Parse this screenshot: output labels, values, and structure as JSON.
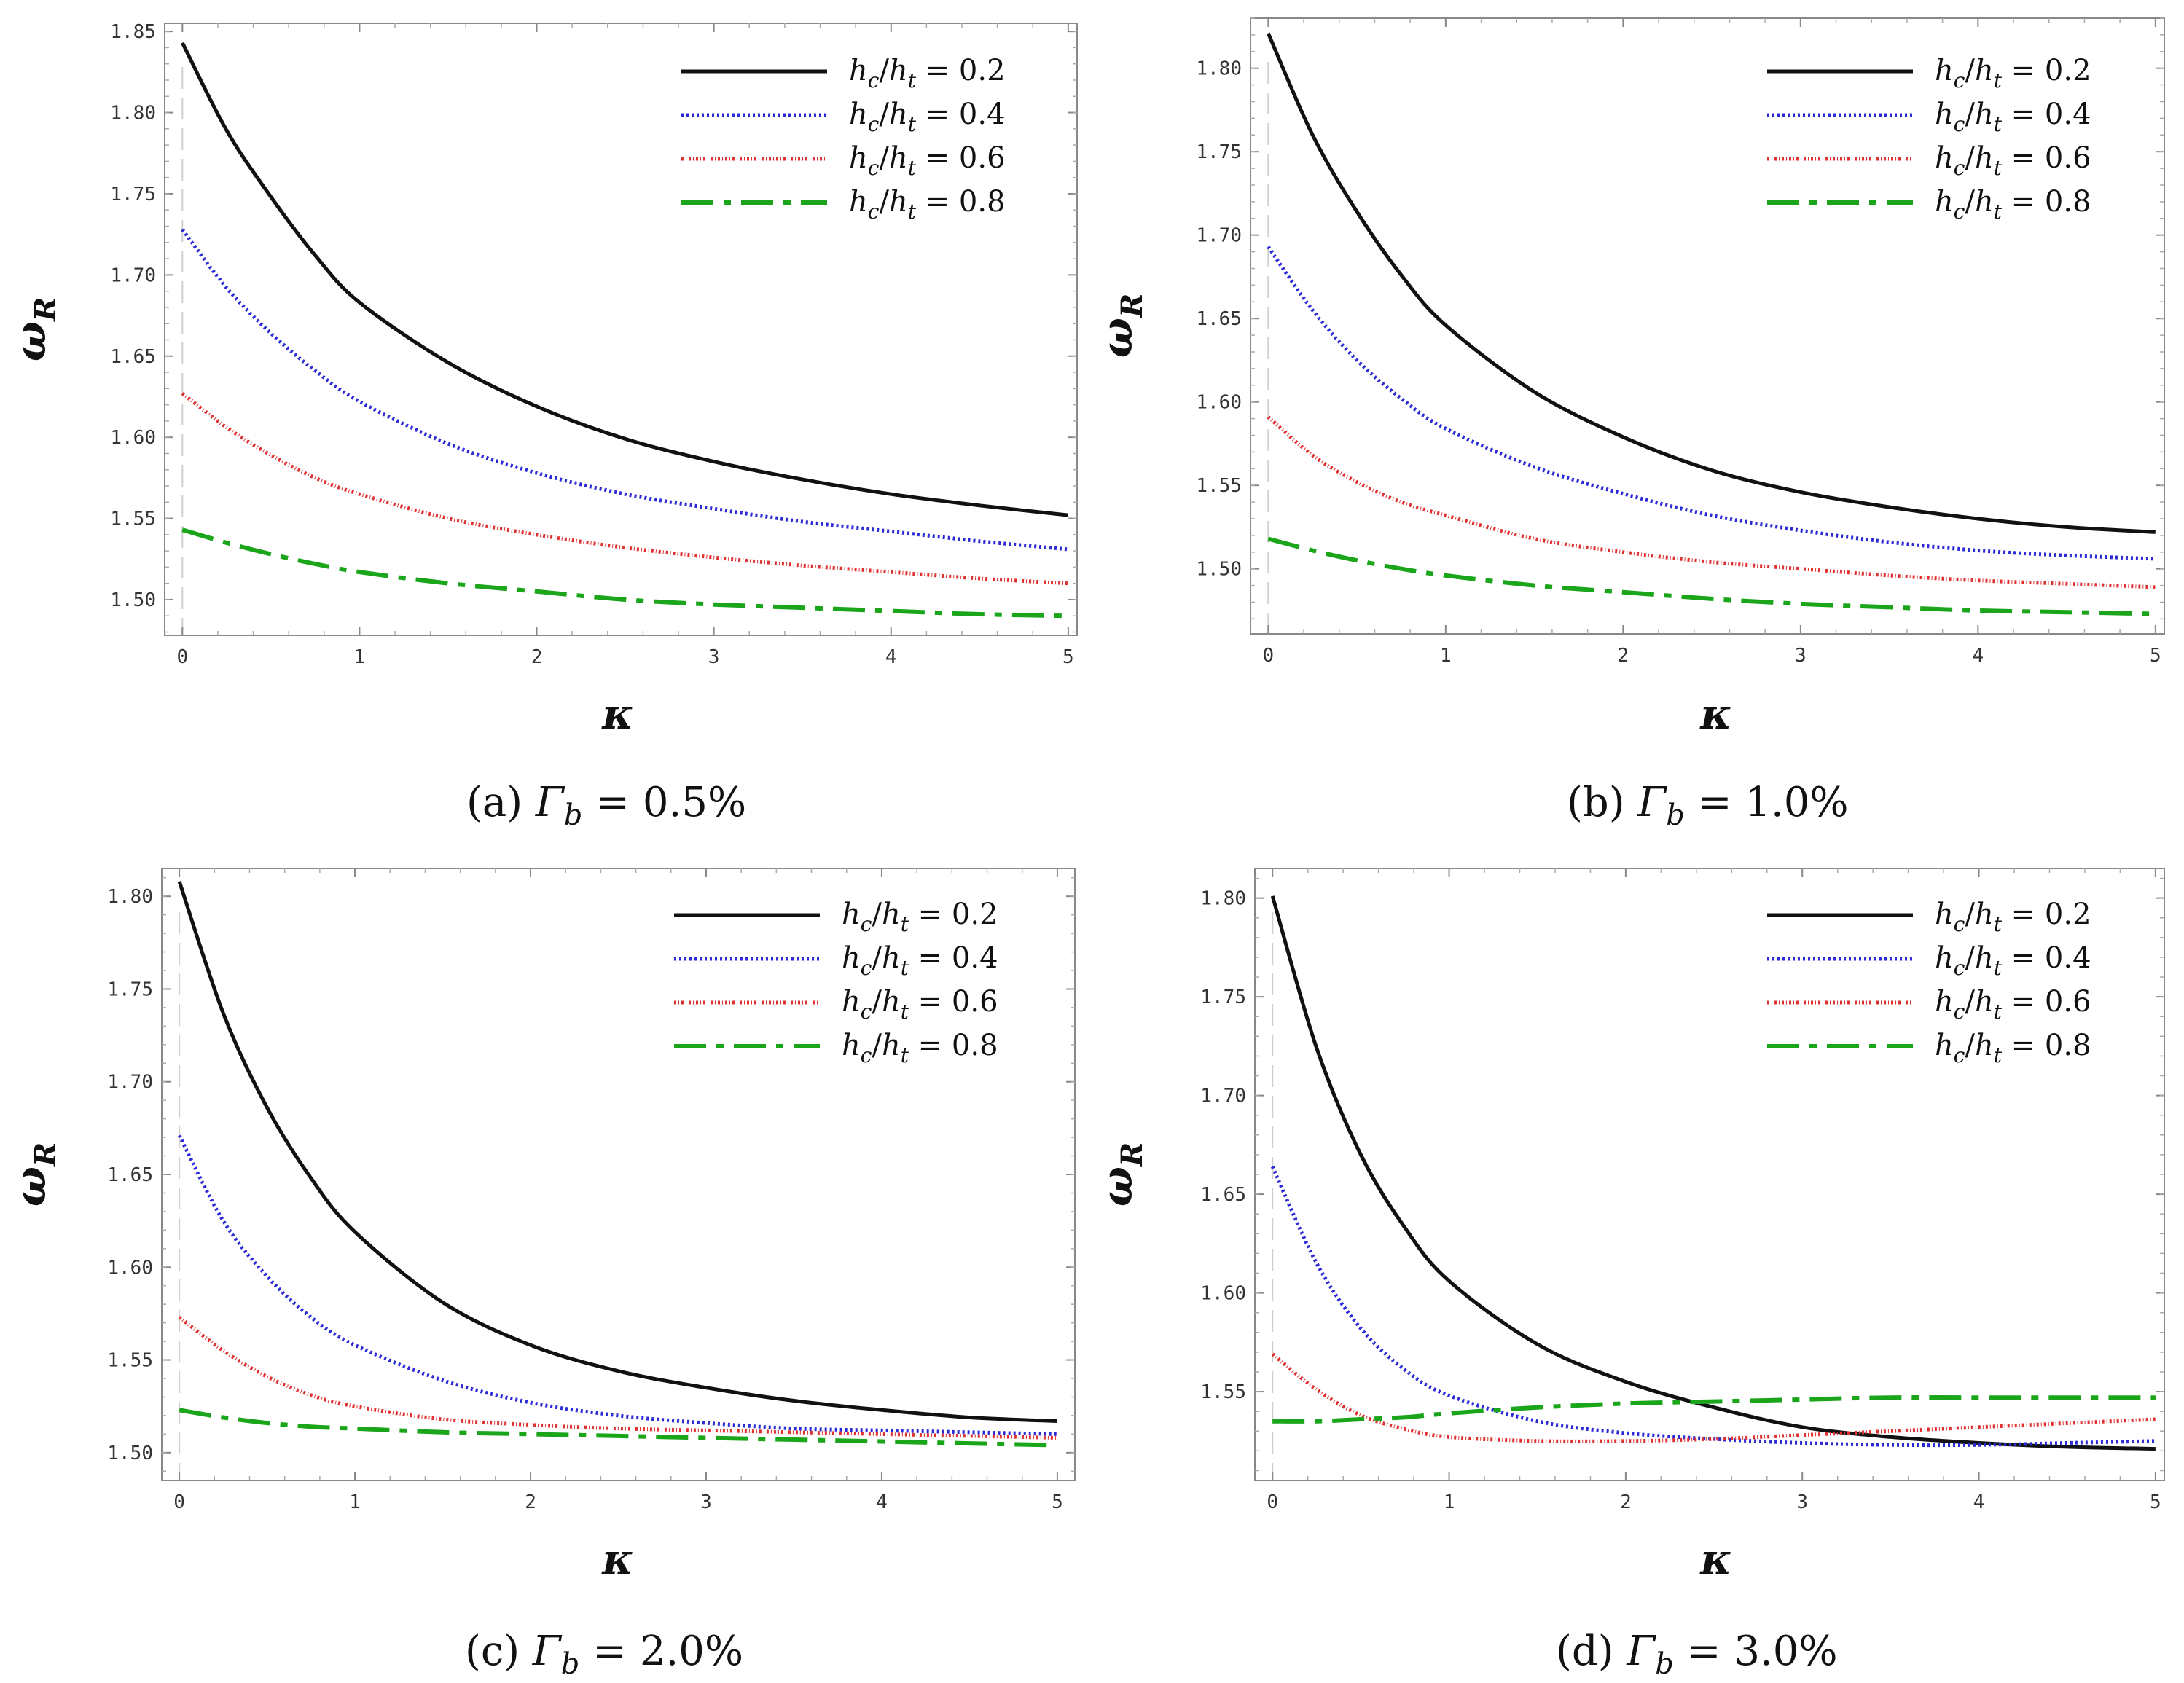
{
  "chart_data": [
    {
      "type": "line",
      "caption_prefix": "(a)",
      "caption_symbol": "Γ",
      "caption_subscript": "b",
      "caption_value": " = 0.5%",
      "xlabel": "κ",
      "ylabel": "ω",
      "ylabel_subscript": "R",
      "xlim": [
        -0.1,
        5.05
      ],
      "ylim": [
        1.478,
        1.855
      ],
      "xticks": [
        0,
        1,
        2,
        3,
        4,
        5
      ],
      "yticks": [
        "1.50",
        "1.55",
        "1.60",
        "1.65",
        "1.70",
        "1.75",
        "1.80",
        "1.85"
      ],
      "x": [
        0,
        0.25,
        0.5,
        0.75,
        1,
        1.5,
        2,
        2.5,
        3,
        3.5,
        4,
        4.5,
        5
      ],
      "series": [
        {
          "name": "h_c/h_t = 0.2",
          "ratio": "0.2",
          "color": "#111111",
          "style": "solid",
          "values": [
            1.843,
            1.789,
            1.748,
            1.712,
            1.683,
            1.646,
            1.619,
            1.599,
            1.585,
            1.574,
            1.565,
            1.558,
            1.552
          ]
        },
        {
          "name": "h_c/h_t = 0.4",
          "ratio": "0.4",
          "color": "#2a2ad6",
          "style": "dotted",
          "values": [
            1.728,
            1.692,
            1.664,
            1.641,
            1.622,
            1.596,
            1.578,
            1.565,
            1.556,
            1.548,
            1.542,
            1.536,
            1.531
          ]
        },
        {
          "name": "h_c/h_t = 0.6",
          "ratio": "0.6",
          "color": "#e03030",
          "style": "dashdot-dense",
          "values": [
            1.627,
            1.606,
            1.589,
            1.575,
            1.565,
            1.55,
            1.54,
            1.532,
            1.526,
            1.521,
            1.517,
            1.513,
            1.51
          ]
        },
        {
          "name": "h_c/h_t = 0.8",
          "ratio": "0.8",
          "color": "#1aa51a",
          "style": "dashdot",
          "values": [
            1.543,
            1.535,
            1.528,
            1.522,
            1.517,
            1.51,
            1.505,
            1.5,
            1.497,
            1.495,
            1.493,
            1.491,
            1.49
          ]
        }
      ]
    },
    {
      "type": "line",
      "caption_prefix": "(b)",
      "caption_symbol": "Γ",
      "caption_subscript": "b",
      "caption_value": " = 1.0%",
      "xlabel": "κ",
      "ylabel": "ω",
      "ylabel_subscript": "R",
      "xlim": [
        -0.1,
        5.05
      ],
      "ylim": [
        1.461,
        1.83
      ],
      "xticks": [
        0,
        1,
        2,
        3,
        4,
        5
      ],
      "yticks": [
        "1.50",
        "1.55",
        "1.60",
        "1.65",
        "1.70",
        "1.75",
        "1.80"
      ],
      "x": [
        0,
        0.25,
        0.5,
        0.75,
        1,
        1.5,
        2,
        2.5,
        3,
        3.5,
        4,
        4.5,
        5
      ],
      "series": [
        {
          "name": "h_c/h_t = 0.2",
          "ratio": "0.2",
          "color": "#111111",
          "style": "solid",
          "values": [
            1.821,
            1.76,
            1.714,
            1.676,
            1.646,
            1.606,
            1.579,
            1.559,
            1.546,
            1.537,
            1.53,
            1.525,
            1.522
          ]
        },
        {
          "name": "h_c/h_t = 0.4",
          "ratio": "0.4",
          "color": "#2a2ad6",
          "style": "dotted",
          "values": [
            1.693,
            1.655,
            1.625,
            1.602,
            1.584,
            1.561,
            1.545,
            1.532,
            1.523,
            1.516,
            1.511,
            1.508,
            1.506
          ]
        },
        {
          "name": "h_c/h_t = 0.6",
          "ratio": "0.6",
          "color": "#e03030",
          "style": "dashdot-dense",
          "values": [
            1.591,
            1.568,
            1.552,
            1.54,
            1.532,
            1.518,
            1.51,
            1.504,
            1.5,
            1.496,
            1.493,
            1.491,
            1.489
          ]
        },
        {
          "name": "h_c/h_t = 0.8",
          "ratio": "0.8",
          "color": "#1aa51a",
          "style": "dashdot",
          "values": [
            1.518,
            1.511,
            1.505,
            1.5,
            1.496,
            1.49,
            1.486,
            1.482,
            1.479,
            1.477,
            1.475,
            1.474,
            1.473
          ]
        }
      ]
    },
    {
      "type": "line",
      "caption_prefix": "(c)",
      "caption_symbol": "Γ",
      "caption_subscript": "b",
      "caption_value": " = 2.0%",
      "xlabel": "κ",
      "ylabel": "ω",
      "ylabel_subscript": "R",
      "xlim": [
        -0.1,
        5.1
      ],
      "ylim": [
        1.485,
        1.815
      ],
      "xticks": [
        0,
        1,
        2,
        3,
        4,
        5
      ],
      "yticks": [
        "1.50",
        "1.55",
        "1.60",
        "1.65",
        "1.70",
        "1.75",
        "1.80"
      ],
      "x": [
        0,
        0.25,
        0.5,
        0.75,
        1,
        1.5,
        2,
        2.5,
        3,
        3.5,
        4,
        4.5,
        5
      ],
      "series": [
        {
          "name": "h_c/h_t = 0.2",
          "ratio": "0.2",
          "color": "#111111",
          "style": "solid",
          "values": [
            1.808,
            1.737,
            1.686,
            1.648,
            1.619,
            1.581,
            1.558,
            1.544,
            1.535,
            1.528,
            1.523,
            1.519,
            1.517
          ]
        },
        {
          "name": "h_c/h_t = 0.4",
          "ratio": "0.4",
          "color": "#2a2ad6",
          "style": "dotted",
          "values": [
            1.671,
            1.625,
            1.595,
            1.573,
            1.558,
            1.539,
            1.527,
            1.52,
            1.516,
            1.513,
            1.512,
            1.511,
            1.51
          ]
        },
        {
          "name": "h_c/h_t = 0.6",
          "ratio": "0.6",
          "color": "#e03030",
          "style": "dashdot-dense",
          "values": [
            1.573,
            1.555,
            1.541,
            1.531,
            1.525,
            1.518,
            1.515,
            1.513,
            1.512,
            1.511,
            1.51,
            1.509,
            1.508
          ]
        },
        {
          "name": "h_c/h_t = 0.8",
          "ratio": "0.8",
          "color": "#1aa51a",
          "style": "dashdot",
          "values": [
            1.523,
            1.519,
            1.516,
            1.514,
            1.513,
            1.511,
            1.51,
            1.509,
            1.508,
            1.507,
            1.506,
            1.505,
            1.504
          ]
        }
      ]
    },
    {
      "type": "line",
      "caption_prefix": "(d)",
      "caption_symbol": "Γ",
      "caption_subscript": "b",
      "caption_value": " = 3.0%",
      "xlabel": "κ",
      "ylabel": "ω",
      "ylabel_subscript": "R",
      "xlim": [
        -0.1,
        5.05
      ],
      "ylim": [
        1.505,
        1.815
      ],
      "xticks": [
        0,
        1,
        2,
        3,
        4,
        5
      ],
      "yticks": [
        "1.55",
        "1.60",
        "1.65",
        "1.70",
        "1.75",
        "1.80"
      ],
      "x": [
        0,
        0.25,
        0.5,
        0.75,
        1,
        1.5,
        2,
        2.5,
        3,
        3.5,
        4,
        4.5,
        5
      ],
      "series": [
        {
          "name": "h_c/h_t = 0.2",
          "ratio": "0.2",
          "color": "#111111",
          "style": "solid",
          "values": [
            1.801,
            1.724,
            1.67,
            1.633,
            1.606,
            1.574,
            1.555,
            1.542,
            1.532,
            1.527,
            1.524,
            1.522,
            1.521
          ]
        },
        {
          "name": "h_c/h_t = 0.4",
          "ratio": "0.4",
          "color": "#2a2ad6",
          "style": "dotted",
          "values": [
            1.664,
            1.615,
            1.582,
            1.561,
            1.548,
            1.535,
            1.529,
            1.526,
            1.524,
            1.523,
            1.523,
            1.524,
            1.525
          ]
        },
        {
          "name": "h_c/h_t = 0.6",
          "ratio": "0.6",
          "color": "#e03030",
          "style": "dashdot-dense",
          "values": [
            1.569,
            1.551,
            1.538,
            1.531,
            1.527,
            1.525,
            1.525,
            1.526,
            1.528,
            1.53,
            1.532,
            1.534,
            1.536
          ]
        },
        {
          "name": "h_c/h_t = 0.8",
          "ratio": "0.8",
          "color": "#1aa51a",
          "style": "dashdot",
          "values": [
            1.535,
            1.535,
            1.536,
            1.537,
            1.539,
            1.542,
            1.544,
            1.545,
            1.546,
            1.547,
            1.547,
            1.547,
            1.547
          ]
        }
      ]
    }
  ],
  "legend_text": {
    "h": "h",
    "c": "c",
    "t": "t",
    "slash": "/",
    "equals": " = "
  },
  "colors": {
    "axis": "#888888",
    "text": "#111111"
  }
}
